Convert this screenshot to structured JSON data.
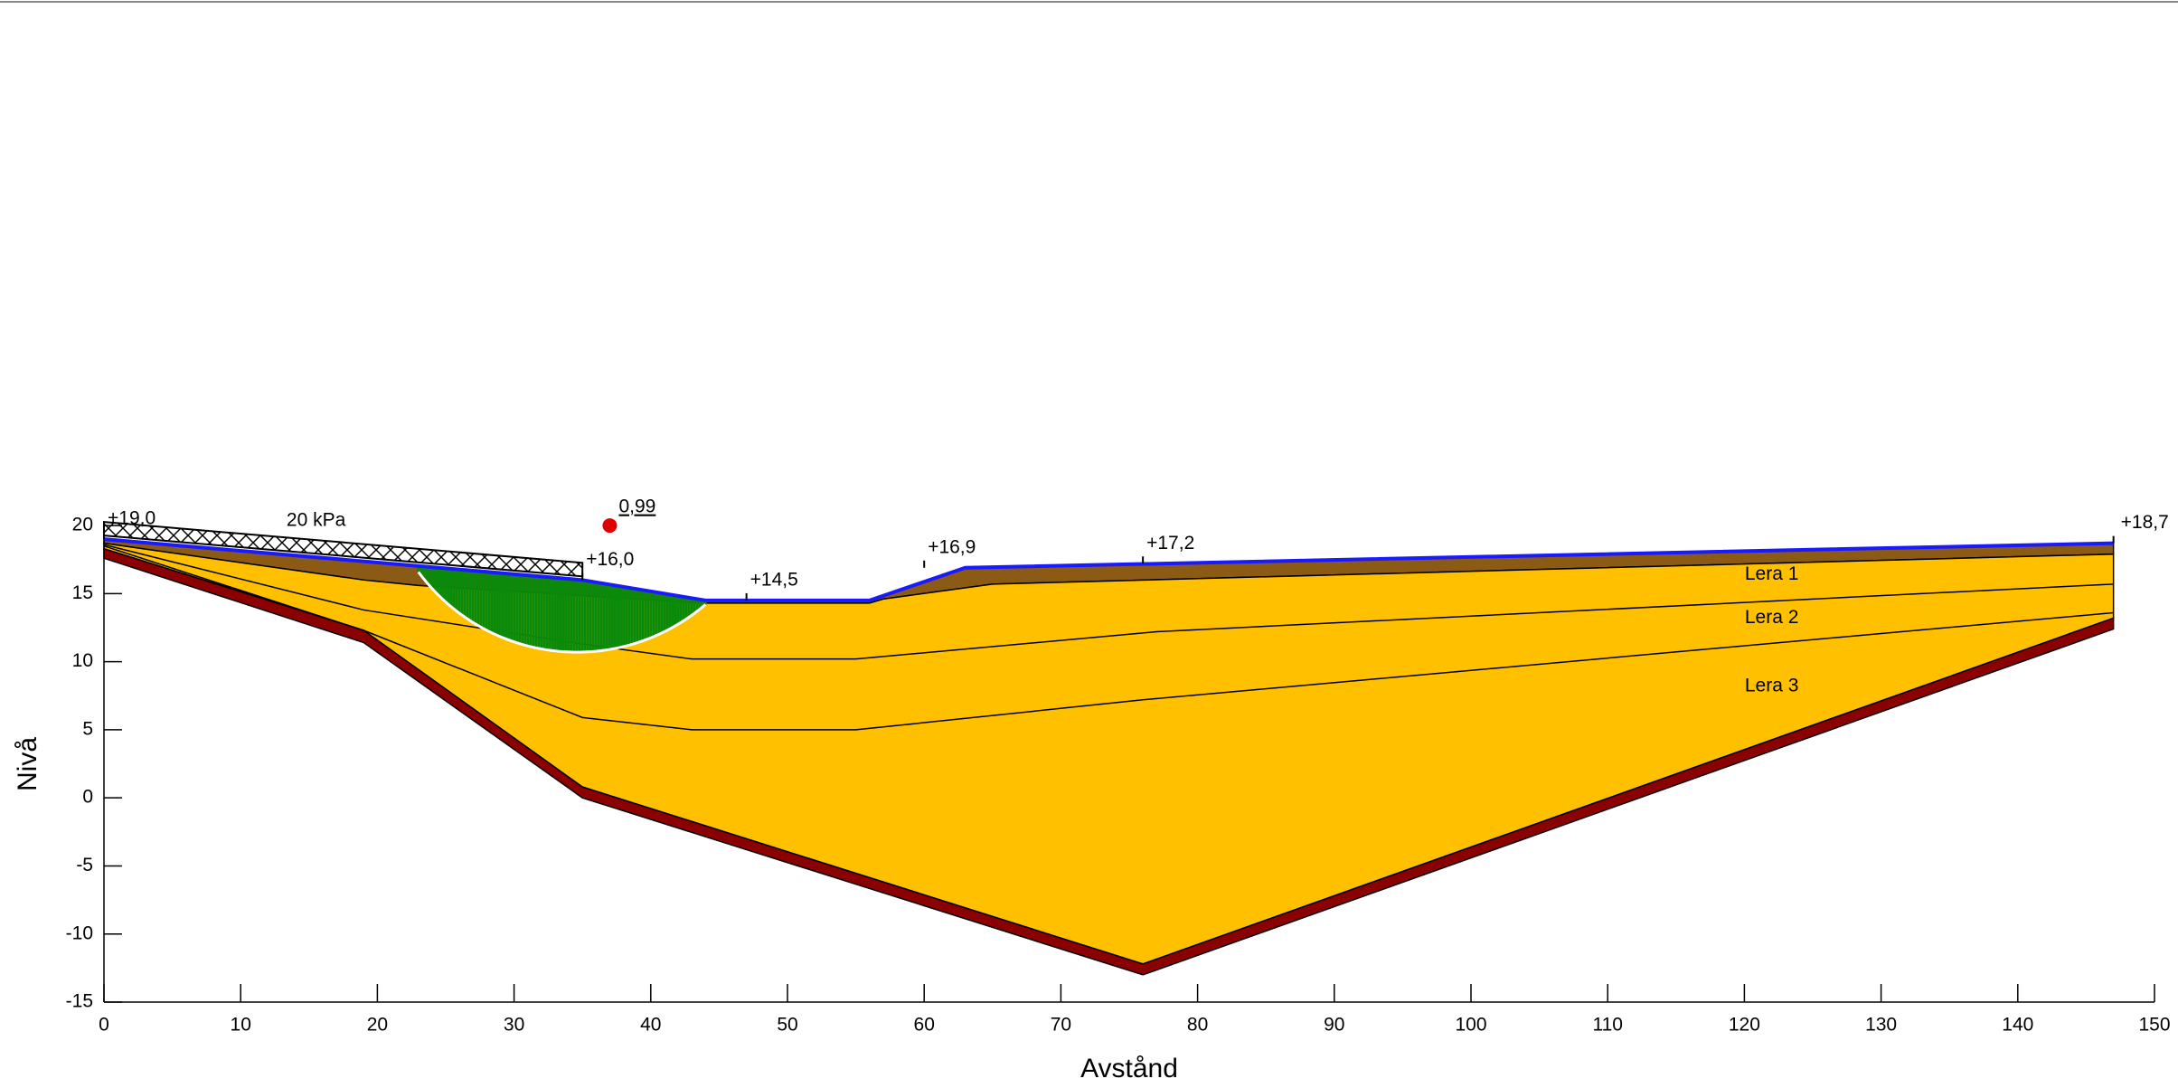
{
  "chart_data": {
    "type": "section",
    "xlabel": "Avstånd",
    "ylabel": "Nivå",
    "xlim": [
      0,
      150
    ],
    "ylim": [
      -15,
      58.4
    ],
    "xticks": [
      0,
      10,
      20,
      30,
      40,
      50,
      60,
      70,
      80,
      90,
      100,
      110,
      120,
      130,
      140,
      150
    ],
    "yticks": [
      -15,
      -10,
      -5,
      0,
      5,
      10,
      15,
      20
    ],
    "surface": {
      "x": [
        0,
        35,
        44,
        56,
        63,
        147
      ],
      "y": [
        19.0,
        16.0,
        14.5,
        14.5,
        16.9,
        18.7
      ]
    },
    "regions": [
      {
        "color": "#8b5a14",
        "x": [
          0,
          35,
          44,
          56,
          63,
          147,
          147,
          65,
          57,
          56,
          44,
          23,
          19,
          0
        ],
        "y": [
          19.0,
          16.0,
          14.5,
          14.5,
          16.9,
          18.7,
          17.9,
          15.7,
          14.6,
          14.3,
          14.3,
          15.6,
          16.0,
          18.7
        ]
      },
      {
        "color": "#ffc000",
        "x": [
          0,
          19,
          23,
          44,
          56,
          57,
          65,
          147,
          147,
          76,
          35,
          19,
          0
        ],
        "y": [
          18.7,
          16.0,
          15.6,
          14.3,
          14.3,
          14.6,
          15.7,
          17.9,
          13.2,
          -12.2,
          0.8,
          12.3,
          18.3
        ]
      },
      {
        "color": "#8b0000",
        "x": [
          0,
          19,
          35,
          76,
          147,
          147,
          76,
          35,
          19,
          0
        ],
        "y": [
          18.3,
          12.3,
          0.8,
          -12.2,
          13.2,
          12.4,
          -13.0,
          0,
          11.4,
          17.6
        ]
      }
    ],
    "boundaries": [
      {
        "x": [
          0,
          19,
          35,
          43,
          55,
          77,
          147
        ],
        "y": [
          18.6,
          13.8,
          11.3,
          10.2,
          10.2,
          12.2,
          15.7
        ]
      },
      {
        "x": [
          0,
          19,
          35,
          43,
          55,
          76,
          147
        ],
        "y": [
          18.5,
          12.3,
          5.9,
          5.0,
          5.0,
          7.2,
          13.6
        ]
      }
    ],
    "layer_labels": [
      {
        "text": "Lera 1",
        "x": 122,
        "y": 16.4
      },
      {
        "text": "Lera 2",
        "x": 122,
        "y": 13.2
      },
      {
        "text": "Lera 3",
        "x": 122,
        "y": 8.2
      }
    ],
    "levels": [
      {
        "label": "+19,0",
        "x": 0,
        "y": 19.0
      },
      {
        "label": "+16,0",
        "x": 35,
        "y": 16.0
      },
      {
        "label": "+14,5",
        "x": 47,
        "y": 14.5
      },
      {
        "label": "+16,9",
        "x": 60,
        "y": 16.9
      },
      {
        "label": "+17,2",
        "x": 76,
        "y": 17.2
      },
      {
        "label": "+18,7",
        "x": 147,
        "y": 18.7
      }
    ],
    "load": {
      "label": "20 kPa",
      "value": 20,
      "x": [
        0,
        35
      ]
    },
    "slip_surface": {
      "center": [
        34.6,
        25.06
      ],
      "radius": 14.36,
      "x_range": [
        23,
        44
      ]
    },
    "factor_of_safety": {
      "label": "0,99",
      "x": 37,
      "y": 20
    }
  }
}
